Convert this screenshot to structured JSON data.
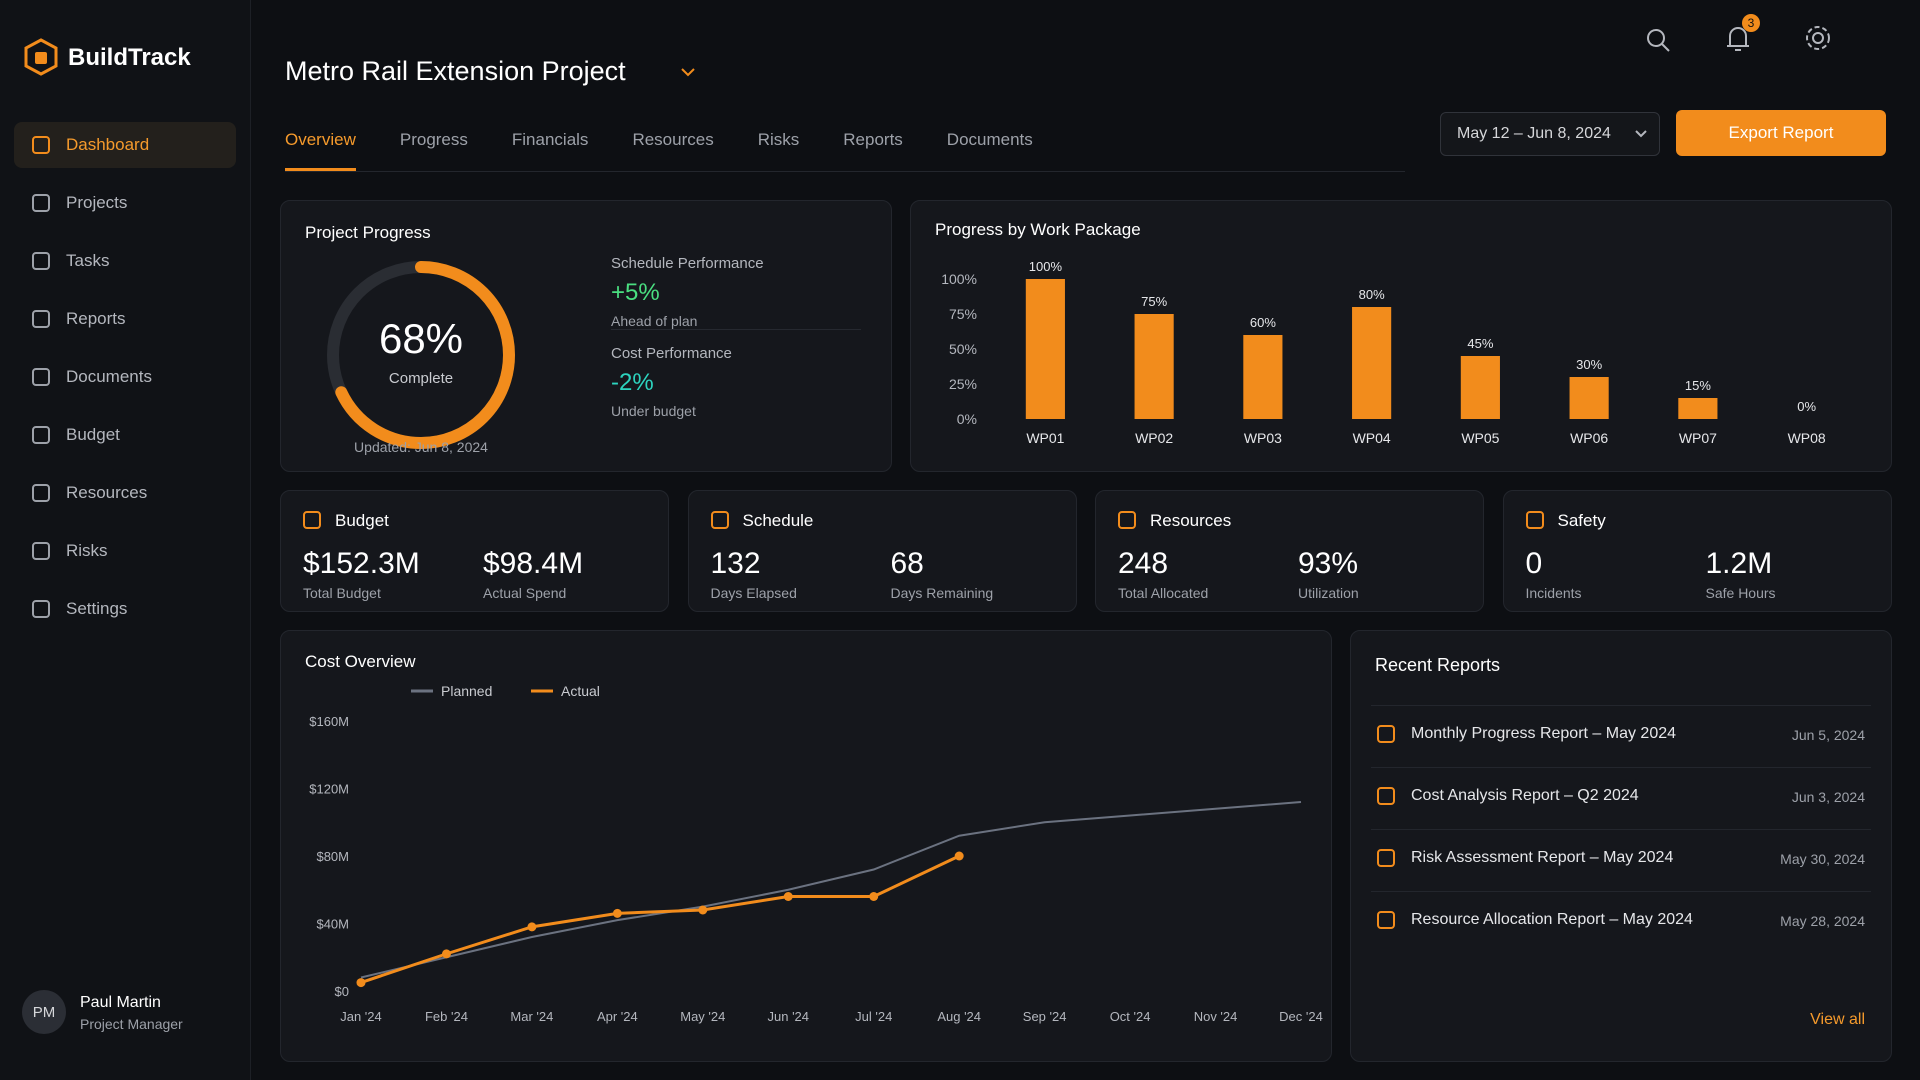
{
  "app": {
    "name": "BuildTrack",
    "nav": [
      "Dashboard",
      "Projects",
      "Tasks",
      "Reports",
      "Documents",
      "Budget",
      "Resources",
      "Risks",
      "Settings"
    ],
    "user": {
      "initials": "PM",
      "name": "Paul Martin",
      "role": "Project Manager"
    }
  },
  "header": {
    "title": "Metro Rail Extension Project",
    "notification_count": 3,
    "date_range": "May 12 – Jun 8, 2024",
    "export": "Export Report"
  },
  "tabs": [
    "Overview",
    "Progress",
    "Financials",
    "Resources",
    "Risks",
    "Reports",
    "Documents"
  ],
  "progress": {
    "title": "Project Progress",
    "percent": 68,
    "percent_label": "68%",
    "caption": "Complete",
    "schedule": {
      "label": "Schedule Performance",
      "value": "+5%",
      "note": "Ahead of plan"
    },
    "cost": {
      "label": "Cost Performance",
      "value": "-2%",
      "note": "Under budget"
    },
    "updated": "Updated: Jun 8, 2024"
  },
  "kpis": [
    {
      "title": "Budget",
      "items": [
        {
          "value": "$152.3M",
          "label": "Total Budget"
        },
        {
          "value": "$98.4M",
          "label": "Actual Spend"
        }
      ]
    },
    {
      "title": "Schedule",
      "items": [
        {
          "value": "132",
          "label": "Days Elapsed"
        },
        {
          "value": "68",
          "label": "Days Remaining"
        }
      ]
    },
    {
      "title": "Resources",
      "items": [
        {
          "value": "248",
          "label": "Total Allocated"
        },
        {
          "value": "93%",
          "label": "Utilization"
        }
      ]
    },
    {
      "title": "Safety",
      "items": [
        {
          "value": "0",
          "label": "Incidents"
        },
        {
          "value": "1.2M",
          "label": "Safe Hours"
        }
      ]
    }
  ],
  "reports": {
    "title": "Recent Reports",
    "items": [
      {
        "name": "Monthly Progress Report – May 2024",
        "date": "Jun 5, 2024"
      },
      {
        "name": "Cost Analysis Report – Q2 2024",
        "date": "Jun 3, 2024"
      },
      {
        "name": "Risk Assessment Report – May 2024",
        "date": "May 30, 2024"
      },
      {
        "name": "Resource Allocation Report – May 2024",
        "date": "May 28, 2024"
      }
    ],
    "view_all": "View all"
  },
  "chart_data": [
    {
      "type": "bar",
      "title": "Progress by Work Package",
      "categories": [
        "WP01",
        "WP02",
        "WP03",
        "WP04",
        "WP05",
        "WP06",
        "WP07",
        "WP08"
      ],
      "values": [
        100,
        75,
        60,
        80,
        45,
        30,
        15,
        0
      ],
      "value_labels": [
        "100%",
        "75%",
        "60%",
        "80%",
        "45%",
        "30%",
        "15%",
        "0%"
      ],
      "color": "#f28c1c",
      "ylim": [
        0,
        100
      ],
      "yticks": [
        {
          "value": 0,
          "label": "0%"
        },
        {
          "value": 25,
          "label": "25%"
        },
        {
          "value": 50,
          "label": "50%"
        },
        {
          "value": 75,
          "label": "75%"
        },
        {
          "value": 100,
          "label": "100%"
        }
      ]
    },
    {
      "type": "line",
      "title": "Cost Overview",
      "categories": [
        "Jan '24",
        "Feb '24",
        "Mar '24",
        "Apr '24",
        "May '24",
        "Jun '24",
        "Jul '24",
        "Aug '24",
        "Sep '24",
        "Oct '24",
        "Nov '24",
        "Dec '24"
      ],
      "series": [
        {
          "name": "Planned",
          "color": "#6b7280",
          "values": [
            8,
            20,
            32,
            42,
            50,
            60,
            72,
            92,
            100,
            104,
            108,
            112
          ]
        },
        {
          "name": "Actual",
          "color": "#f28c1c",
          "values": [
            5,
            22,
            38,
            46,
            48,
            56,
            56,
            80,
            null,
            null,
            null,
            null
          ]
        }
      ],
      "ylim": [
        0,
        160
      ],
      "yticks": [
        {
          "value": 0,
          "label": "$0"
        },
        {
          "value": 40,
          "label": "$40M"
        },
        {
          "value": 80,
          "label": "$80M"
        },
        {
          "value": 120,
          "label": "$120M"
        },
        {
          "value": 160,
          "label": "$160M"
        }
      ]
    }
  ]
}
